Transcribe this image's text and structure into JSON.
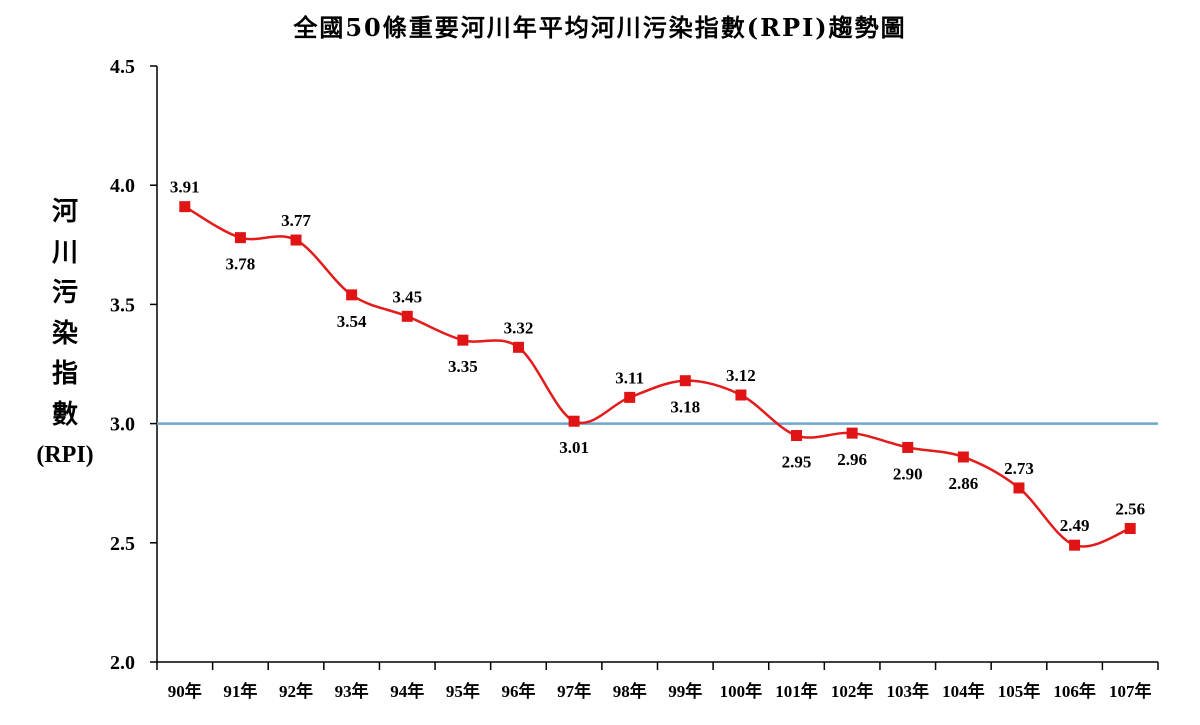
{
  "chart_data": {
    "type": "line",
    "title": "全國50條重要河川年平均河川污染指數(RPI)趨勢圖",
    "ylabel_chars": [
      "河",
      "川",
      "污",
      "染",
      "指",
      "數"
    ],
    "ylabel_unit": "(RPI)",
    "categories": [
      "90年",
      "91年",
      "92年",
      "93年",
      "94年",
      "95年",
      "96年",
      "97年",
      "98年",
      "99年",
      "100年",
      "101年",
      "102年",
      "103年",
      "104年",
      "105年",
      "106年",
      "107年"
    ],
    "values": [
      3.91,
      3.78,
      3.77,
      3.54,
      3.45,
      3.35,
      3.32,
      3.01,
      3.11,
      3.18,
      3.12,
      2.95,
      2.96,
      2.9,
      2.86,
      2.73,
      2.49,
      2.56
    ],
    "value_labels": [
      "3.91",
      "3.78",
      "3.77",
      "3.54",
      "3.45",
      "3.35",
      "3.32",
      "3.01",
      "3.11",
      "3.18",
      "3.12",
      "2.95",
      "2.96",
      "2.90",
      "2.86",
      "2.73",
      "2.49",
      "2.56"
    ],
    "label_positions": [
      "above",
      "below",
      "above",
      "below",
      "above",
      "below",
      "above",
      "below",
      "above",
      "below",
      "above",
      "below",
      "below",
      "below",
      "below",
      "above",
      "above",
      "above"
    ],
    "ylim": [
      2.0,
      4.5
    ],
    "yticks": [
      2.0,
      2.5,
      3.0,
      3.5,
      4.0,
      4.5
    ],
    "ytick_labels": [
      "2.0",
      "2.5",
      "3.0",
      "3.5",
      "4.0",
      "4.5"
    ],
    "reference_line": 3.0,
    "grid": false,
    "line_color": "#e31b1b",
    "marker_color": "#e01414",
    "reference_line_color": "#6fa6cf",
    "axis_color": "#000000"
  }
}
